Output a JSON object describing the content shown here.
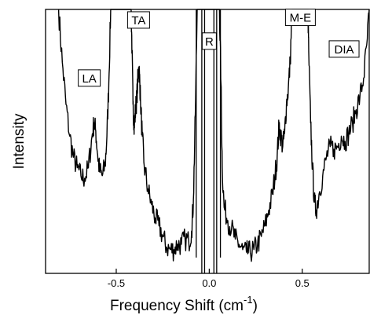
{
  "chart_data": {
    "type": "line",
    "title": "",
    "xlabel": "Frequency Shift (cm",
    "xlabel_sup": "-1",
    "xlabel_end": ")",
    "ylabel": "Intensity",
    "xlim": [
      -0.88,
      0.86
    ],
    "ylim": [
      0,
      100
    ],
    "x_ticks": [
      -0.5,
      0.0,
      0.5
    ],
    "x_tick_labels": [
      "-0.5",
      "0.0",
      "0.5"
    ],
    "grid": false,
    "legend": "none",
    "y_tick_labels": false,
    "series": [
      {
        "points": [
          [
            -0.81,
            100
          ],
          [
            -0.79,
            80
          ],
          [
            -0.77,
            64
          ],
          [
            -0.75,
            52
          ],
          [
            -0.73,
            44
          ],
          [
            -0.71,
            40
          ],
          [
            -0.69,
            37
          ],
          [
            -0.67,
            36
          ],
          [
            -0.65,
            40
          ],
          [
            -0.63,
            52
          ],
          [
            -0.62,
            57
          ],
          [
            -0.61,
            54
          ],
          [
            -0.6,
            45
          ],
          [
            -0.59,
            39
          ],
          [
            -0.575,
            37
          ],
          [
            -0.56,
            41
          ],
          [
            -0.55,
            52
          ],
          [
            -0.54,
            72
          ],
          [
            -0.53,
            100
          ],
          [
            -0.42,
            100
          ],
          [
            -0.415,
            84
          ],
          [
            -0.41,
            64
          ],
          [
            -0.405,
            57
          ],
          [
            -0.4,
            58
          ],
          [
            -0.395,
            63
          ],
          [
            -0.39,
            66
          ],
          [
            -0.385,
            72
          ],
          [
            -0.38,
            78
          ],
          [
            -0.375,
            75
          ],
          [
            -0.37,
            66
          ],
          [
            -0.36,
            52
          ],
          [
            -0.35,
            41
          ],
          [
            -0.33,
            32
          ],
          [
            -0.31,
            26
          ],
          [
            -0.29,
            21
          ],
          [
            -0.27,
            18
          ],
          [
            -0.25,
            14
          ],
          [
            -0.23,
            10
          ],
          [
            -0.21,
            9
          ],
          [
            -0.19,
            9
          ],
          [
            -0.17,
            11
          ],
          [
            -0.15,
            11
          ],
          [
            -0.13,
            13
          ],
          [
            -0.11,
            12
          ],
          [
            -0.095,
            16
          ],
          [
            -0.085,
            28
          ],
          [
            -0.075,
            60
          ],
          [
            -0.065,
            100
          ],
          [
            0.055,
            100
          ],
          [
            0.063,
            72
          ],
          [
            0.07,
            40
          ],
          [
            0.08,
            25
          ],
          [
            0.1,
            20
          ],
          [
            0.12,
            17
          ],
          [
            0.14,
            13
          ],
          [
            0.16,
            11
          ],
          [
            0.18,
            9
          ],
          [
            0.2,
            8
          ],
          [
            0.22,
            8
          ],
          [
            0.24,
            9
          ],
          [
            0.26,
            11
          ],
          [
            0.28,
            14
          ],
          [
            0.3,
            18
          ],
          [
            0.32,
            24
          ],
          [
            0.34,
            30
          ],
          [
            0.355,
            38
          ],
          [
            0.365,
            44
          ],
          [
            0.375,
            56
          ],
          [
            0.385,
            52
          ],
          [
            0.395,
            48
          ],
          [
            0.405,
            53
          ],
          [
            0.415,
            64
          ],
          [
            0.425,
            70
          ],
          [
            0.435,
            80
          ],
          [
            0.445,
            100
          ],
          [
            0.53,
            100
          ],
          [
            0.535,
            84
          ],
          [
            0.545,
            57
          ],
          [
            0.555,
            40
          ],
          [
            0.565,
            27
          ],
          [
            0.575,
            24
          ],
          [
            0.59,
            30
          ],
          [
            0.61,
            37
          ],
          [
            0.63,
            44
          ],
          [
            0.65,
            48
          ],
          [
            0.67,
            47
          ],
          [
            0.69,
            48
          ],
          [
            0.71,
            52
          ],
          [
            0.73,
            50
          ],
          [
            0.75,
            53
          ],
          [
            0.77,
            57
          ],
          [
            0.79,
            62
          ],
          [
            0.81,
            67
          ],
          [
            0.83,
            74
          ],
          [
            0.85,
            89
          ],
          [
            0.86,
            100
          ]
        ]
      }
    ],
    "verticals": [
      {
        "x": -0.07,
        "y0": 100,
        "y1": 6
      },
      {
        "x": -0.04,
        "y0": 100,
        "y1": 0
      },
      {
        "x": -0.025,
        "y0": 100,
        "y1": 0
      },
      {
        "x": 0.025,
        "y0": 100,
        "y1": 0
      },
      {
        "x": 0.04,
        "y0": 100,
        "y1": 0
      },
      {
        "x": 0.06,
        "y0": 100,
        "y1": 6
      }
    ],
    "annotations": [
      {
        "text": "LA",
        "x": -0.645,
        "y": 74
      },
      {
        "text": "TA",
        "x": -0.38,
        "y": 96
      },
      {
        "text": "R",
        "x": 0.0,
        "y": 88
      },
      {
        "text": "M-E",
        "x": 0.49,
        "y": 97
      },
      {
        "text": "DIA",
        "x": 0.725,
        "y": 85
      }
    ]
  }
}
